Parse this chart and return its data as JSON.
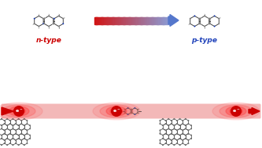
{
  "bg_color": "#ffffff",
  "n_type_label": "n-type",
  "p_type_label": "p-type",
  "n_label_color": "#cc0000",
  "p_label_color": "#2244bb",
  "carbon_color": "#808080",
  "nitrogen_color": "#1a3db5",
  "hydrogen_color": "#e8e8e8",
  "bond_color": "#444444",
  "pink_channel_color": "#f0a0a0",
  "red_glow_color": "#dd0000",
  "graphene_carbon": "#707070",
  "graphene_bond": "#505050",
  "bridge_carbon": "#907060",
  "arrow_body_color": "#5577dd"
}
